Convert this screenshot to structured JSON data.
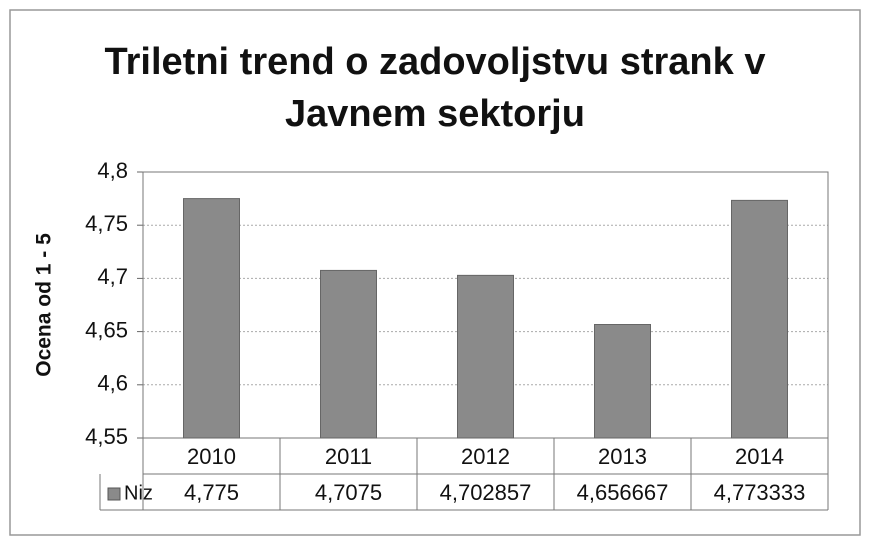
{
  "chart_data": {
    "type": "bar",
    "title": "Triletni trend o zadovoljstvu strank v Javnem sektorju",
    "y_label": "Ocena od 1 - 5",
    "categories": [
      "2010",
      "2011",
      "2012",
      "2013",
      "2014"
    ],
    "series": [
      {
        "name": "Niz",
        "color": "#8a8a8a",
        "values": [
          4.775,
          4.7075,
          4.702857,
          4.656667,
          4.773333
        ],
        "value_labels": [
          "4,775",
          "4,7075",
          "4,702857",
          "4,656667",
          "4,773333"
        ]
      }
    ],
    "ylim": [
      4.55,
      4.8
    ],
    "yticks": [
      {
        "value": 4.55,
        "label": "4,55"
      },
      {
        "value": 4.6,
        "label": "4,6"
      },
      {
        "value": 4.65,
        "label": "4,65"
      },
      {
        "value": 4.7,
        "label": "4,7"
      },
      {
        "value": 4.75,
        "label": "4,75"
      },
      {
        "value": 4.8,
        "label": "4,8"
      }
    ],
    "grid": true,
    "data_table": true
  }
}
